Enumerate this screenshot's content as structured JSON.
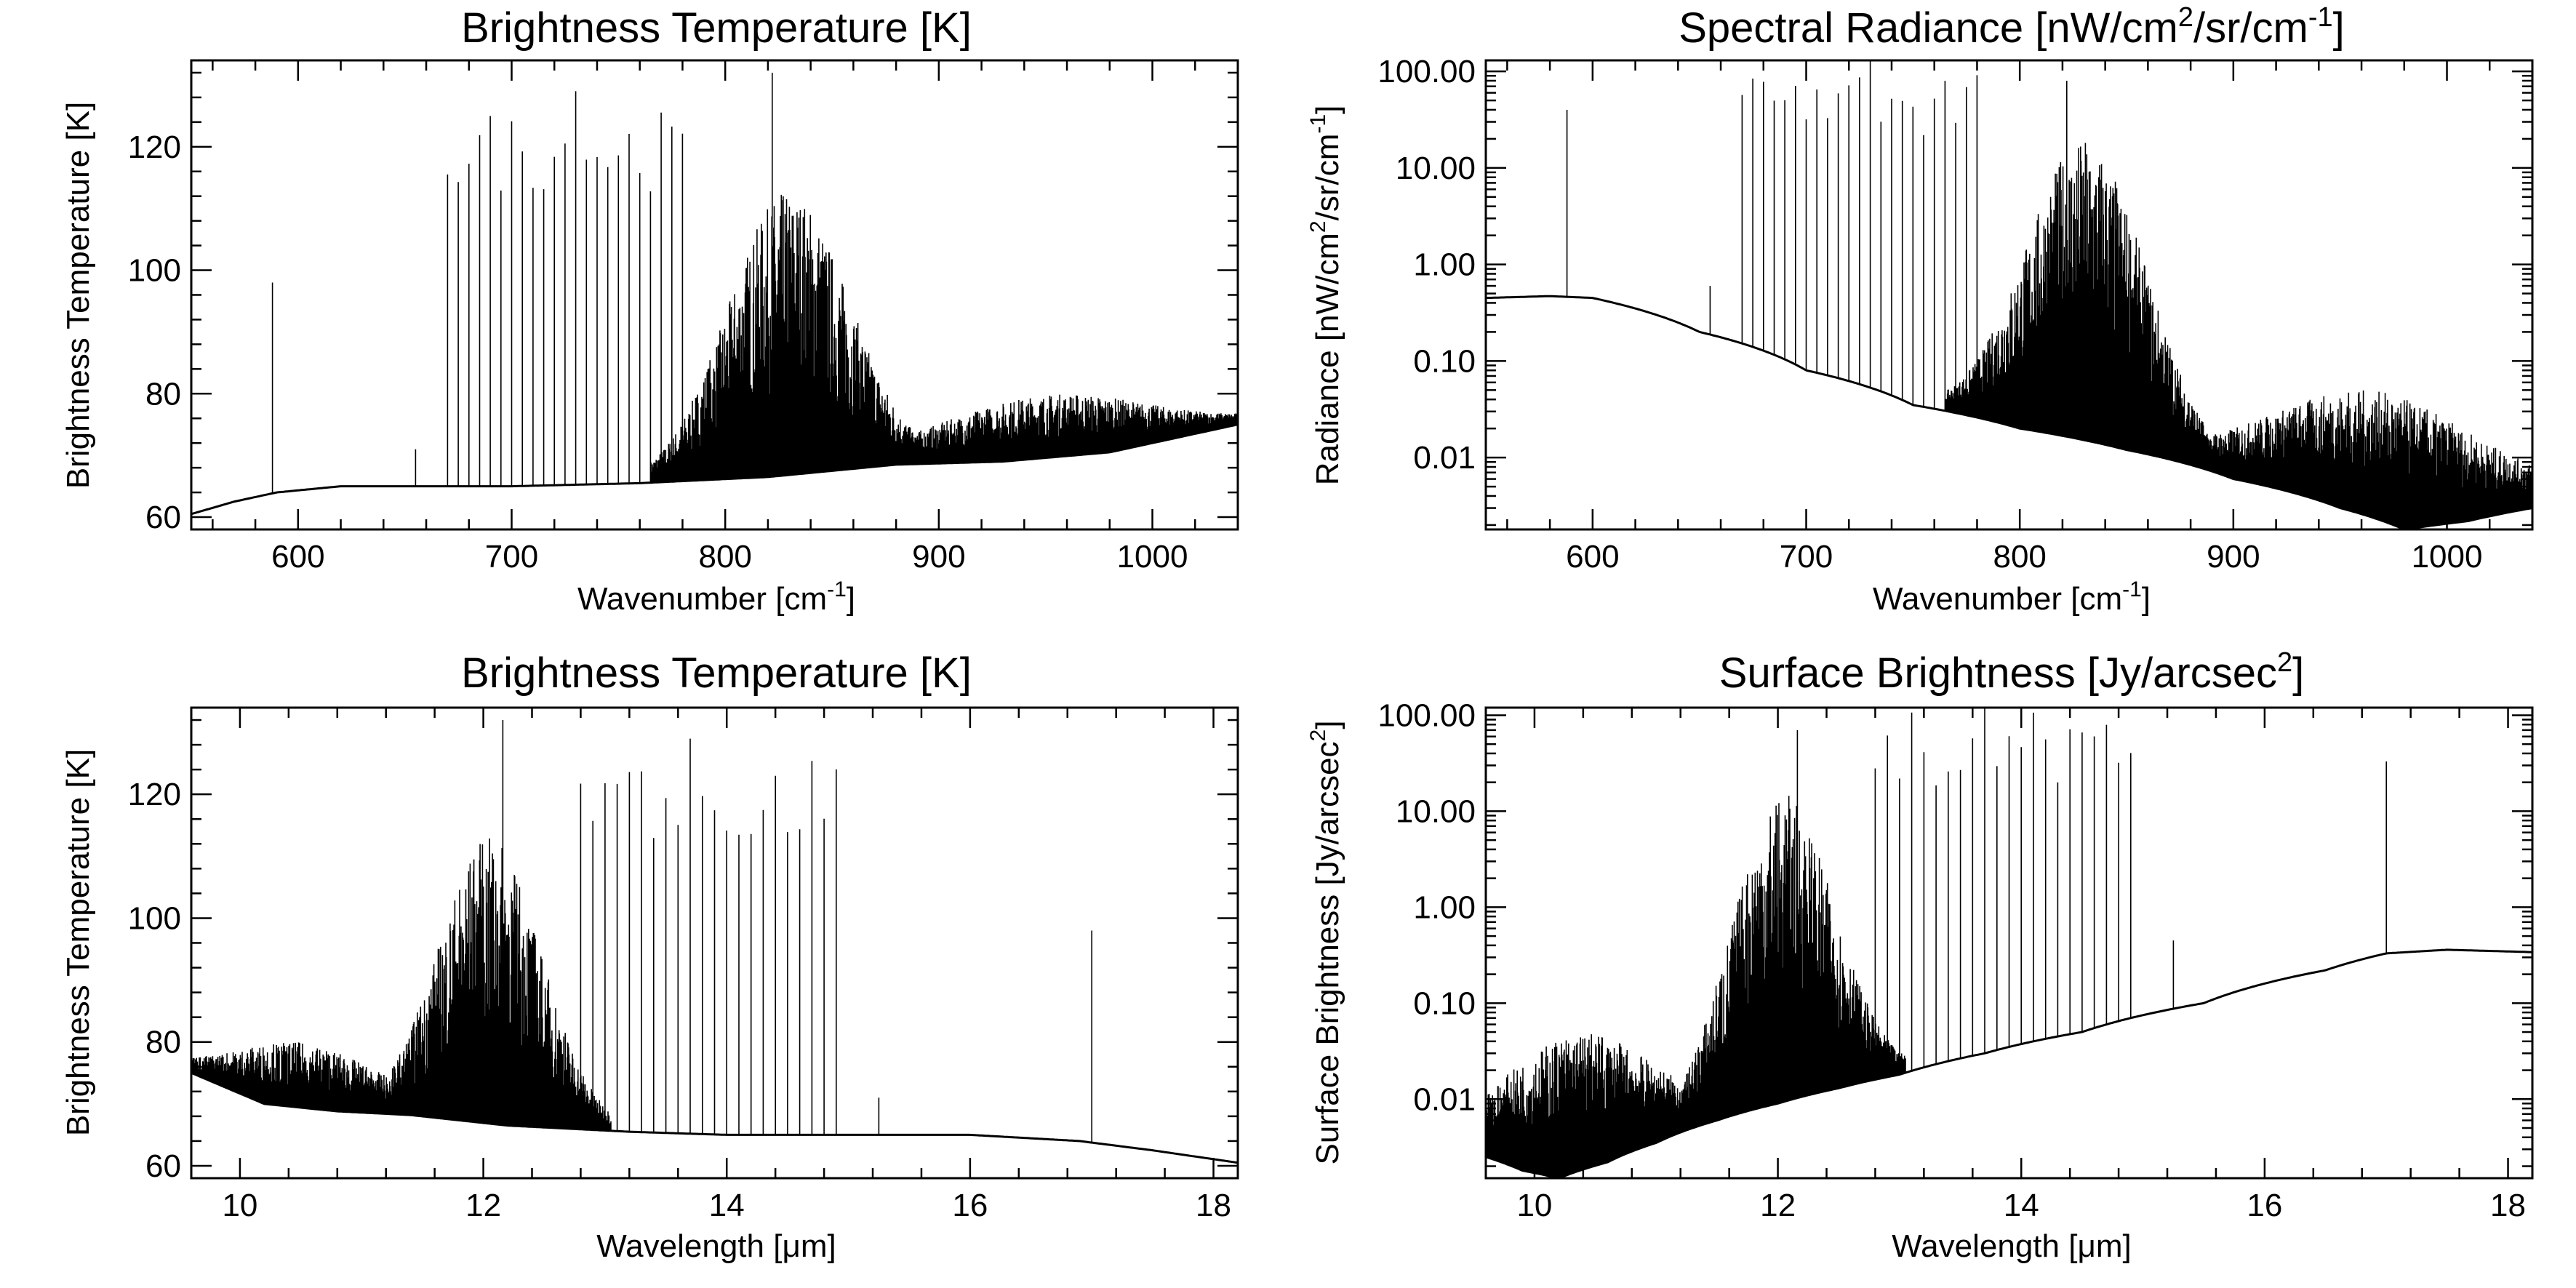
{
  "chart_data": [
    {
      "type": "line",
      "panel": "top-left",
      "title": "Brightness Temperature [K]",
      "xlabel": {
        "base": "Wavenumber [cm",
        "sup": "-1",
        "tail": "]"
      },
      "ylabel": "Brightness Temperature [K]",
      "xlim": [
        550,
        1040
      ],
      "ylim": [
        58,
        134
      ],
      "yscale": "linear",
      "xticks": [
        600,
        700,
        800,
        900,
        1000
      ],
      "xtick_labels": [
        "600",
        "700",
        "800",
        "900",
        "1000"
      ],
      "yticks": [
        60,
        80,
        100,
        120
      ],
      "ytick_labels": [
        "60",
        "80",
        "100",
        "120"
      ],
      "series_color": "#000000",
      "series": [
        {
          "continuum": {
            "x": [
              550,
              570,
              590,
              620,
              660,
              700,
              760,
              820,
              880,
              930,
              980,
              1040
            ],
            "y": [
              60.5,
              62.5,
              64.0,
              65.0,
              65.0,
              65.0,
              65.5,
              66.5,
              68.5,
              69.0,
              70.5,
              75.0
            ]
          },
          "narrow_lines": [
            {
              "x": 588,
              "y": 98
            },
            {
              "x": 655,
              "y": 71
            },
            {
              "x": 822,
              "y": 132
            },
            {
              "x": 730,
              "y": 129
            }
          ],
          "line_series": {
            "x_start": 670,
            "x_end": 780,
            "spacing": 5,
            "peak": 126
          },
          "forest_bands": [
            {
              "x_start": 765,
              "x_end": 890,
              "center": 830,
              "width": 40,
              "peak": 113
            },
            {
              "x_start": 880,
              "x_end": 1040,
              "center": 960,
              "width": 80,
              "peak": 80
            }
          ]
        }
      ]
    },
    {
      "type": "line",
      "panel": "top-right",
      "title": {
        "base": "Spectral Radiance [nW/cm",
        "sup1": "2",
        "mid": "/sr/cm",
        "sup2": "-1",
        "tail": "]"
      },
      "xlabel": {
        "base": "Wavenumber [cm",
        "sup": "-1",
        "tail": "]"
      },
      "ylabel": {
        "base": "Radiance [nW/cm",
        "sup1": "2",
        "mid": "/sr/cm",
        "sup2": "-1",
        "tail": "]"
      },
      "xlim": [
        550,
        1040
      ],
      "ylim": [
        0.0018,
        130
      ],
      "yscale": "log",
      "xticks": [
        600,
        700,
        800,
        900,
        1000
      ],
      "xtick_labels": [
        "600",
        "700",
        "800",
        "900",
        "1000"
      ],
      "yticks": [
        0.01,
        0.1,
        1,
        10,
        100
      ],
      "ytick_labels": [
        "0.01",
        "0.10",
        "1.00",
        "10.00",
        "100.00"
      ],
      "series_color": "#000000",
      "series": [
        {
          "continuum": {
            "x": [
              550,
              580,
              600,
              650,
              700,
              750,
              800,
              850,
              900,
              950,
              980,
              1010,
              1040
            ],
            "y": [
              0.45,
              0.47,
              0.45,
              0.2,
              0.08,
              0.035,
              0.02,
              0.012,
              0.006,
              0.003,
              0.0018,
              0.0022,
              0.003
            ]
          },
          "narrow_lines": [
            {
              "x": 588,
              "y": 40
            },
            {
              "x": 655,
              "y": 0.6
            },
            {
              "x": 822,
              "y": 80
            },
            {
              "x": 730,
              "y": 130
            }
          ],
          "line_series": {
            "x_start": 670,
            "x_end": 780,
            "spacing": 5,
            "peak": 120
          },
          "forest_bands": [
            {
              "x_start": 765,
              "x_end": 890,
              "center": 830,
              "width": 40,
              "peak": 20
            },
            {
              "x_start": 880,
              "x_end": 1040,
              "center": 960,
              "width": 80,
              "peak": 0.05
            }
          ]
        }
      ]
    },
    {
      "type": "line",
      "panel": "bottom-left",
      "title": "Brightness Temperature [K]",
      "xlabel": {
        "base": "Wavelength [",
        "mu": "μ",
        "tail": "m]"
      },
      "ylabel": "Brightness Temperature [K]",
      "xlim": [
        9.6,
        18.2
      ],
      "ylim": [
        58,
        134
      ],
      "yscale": "linear",
      "xticks": [
        10,
        12,
        14,
        16,
        18
      ],
      "xtick_labels": [
        "10",
        "12",
        "14",
        "16",
        "18"
      ],
      "yticks": [
        60,
        80,
        100,
        120
      ],
      "ytick_labels": [
        "60",
        "80",
        "100",
        "120"
      ],
      "series_color": "#000000",
      "series": [
        {
          "continuum": {
            "x": [
              9.6,
              10.2,
              10.8,
              11.4,
              12.2,
              13.2,
              14.0,
              15.0,
              16.0,
              16.9,
              17.5,
              18.2
            ],
            "y": [
              75.0,
              70.0,
              68.8,
              68.2,
              66.5,
              65.5,
              65.0,
              65.0,
              65.0,
              64.0,
              62.5,
              60.5
            ]
          },
          "narrow_lines": [
            {
              "x": 17.0,
              "y": 98
            },
            {
              "x": 15.25,
              "y": 71
            },
            {
              "x": 12.16,
              "y": 132
            },
            {
              "x": 13.7,
              "y": 129
            }
          ],
          "line_series": {
            "x_start": 12.8,
            "x_end": 14.9,
            "spacing": 0.1,
            "peak": 126
          },
          "forest_bands": [
            {
              "x_start": 11.25,
              "x_end": 13.05,
              "center": 12.05,
              "width": 0.6,
              "peak": 113
            },
            {
              "x_start": 9.6,
              "x_end": 11.35,
              "center": 10.4,
              "width": 1.0,
              "peak": 80
            }
          ]
        }
      ]
    },
    {
      "type": "line",
      "panel": "bottom-right",
      "title": {
        "base": "Surface Brightness [Jy/arcsec",
        "sup": "2",
        "tail": "]"
      },
      "xlabel": {
        "base": "Wavelength [",
        "mu": "μ",
        "tail": "m]"
      },
      "ylabel": {
        "base": "Surface Brightness [Jy/arcsec",
        "sup": "2",
        "tail": "]"
      },
      "xlim": [
        9.6,
        18.2
      ],
      "ylim": [
        0.0015,
        120
      ],
      "yscale": "log",
      "xticks": [
        10,
        12,
        14,
        16,
        18
      ],
      "xtick_labels": [
        "10",
        "12",
        "14",
        "16",
        "18"
      ],
      "yticks": [
        0.01,
        0.1,
        1,
        10,
        100
      ],
      "ytick_labels": [
        "0.01",
        "0.10",
        "1.00",
        "10.00",
        "100.00"
      ],
      "series_color": "#000000",
      "series": [
        {
          "continuum": {
            "x": [
              9.6,
              9.9,
              10.2,
              10.6,
              11.0,
              11.5,
              12.0,
              12.5,
              13.0,
              13.7,
              14.5,
              15.5,
              16.5,
              17.0,
              17.5,
              18.2
            ],
            "y": [
              0.0025,
              0.0018,
              0.0015,
              0.0022,
              0.0035,
              0.006,
              0.009,
              0.013,
              0.018,
              0.03,
              0.05,
              0.1,
              0.22,
              0.33,
              0.36,
              0.34
            ]
          },
          "narrow_lines": [
            {
              "x": 17.0,
              "y": 33
            },
            {
              "x": 15.25,
              "y": 0.45
            },
            {
              "x": 12.16,
              "y": 70
            },
            {
              "x": 13.7,
              "y": 120
            }
          ],
          "line_series": {
            "x_start": 12.8,
            "x_end": 14.9,
            "spacing": 0.1,
            "peak": 110
          },
          "forest_bands": [
            {
              "x_start": 11.25,
              "x_end": 13.05,
              "center": 12.05,
              "width": 0.6,
              "peak": 15
            },
            {
              "x_start": 9.6,
              "x_end": 11.35,
              "center": 10.4,
              "width": 1.0,
              "peak": 0.05
            }
          ]
        }
      ]
    }
  ]
}
